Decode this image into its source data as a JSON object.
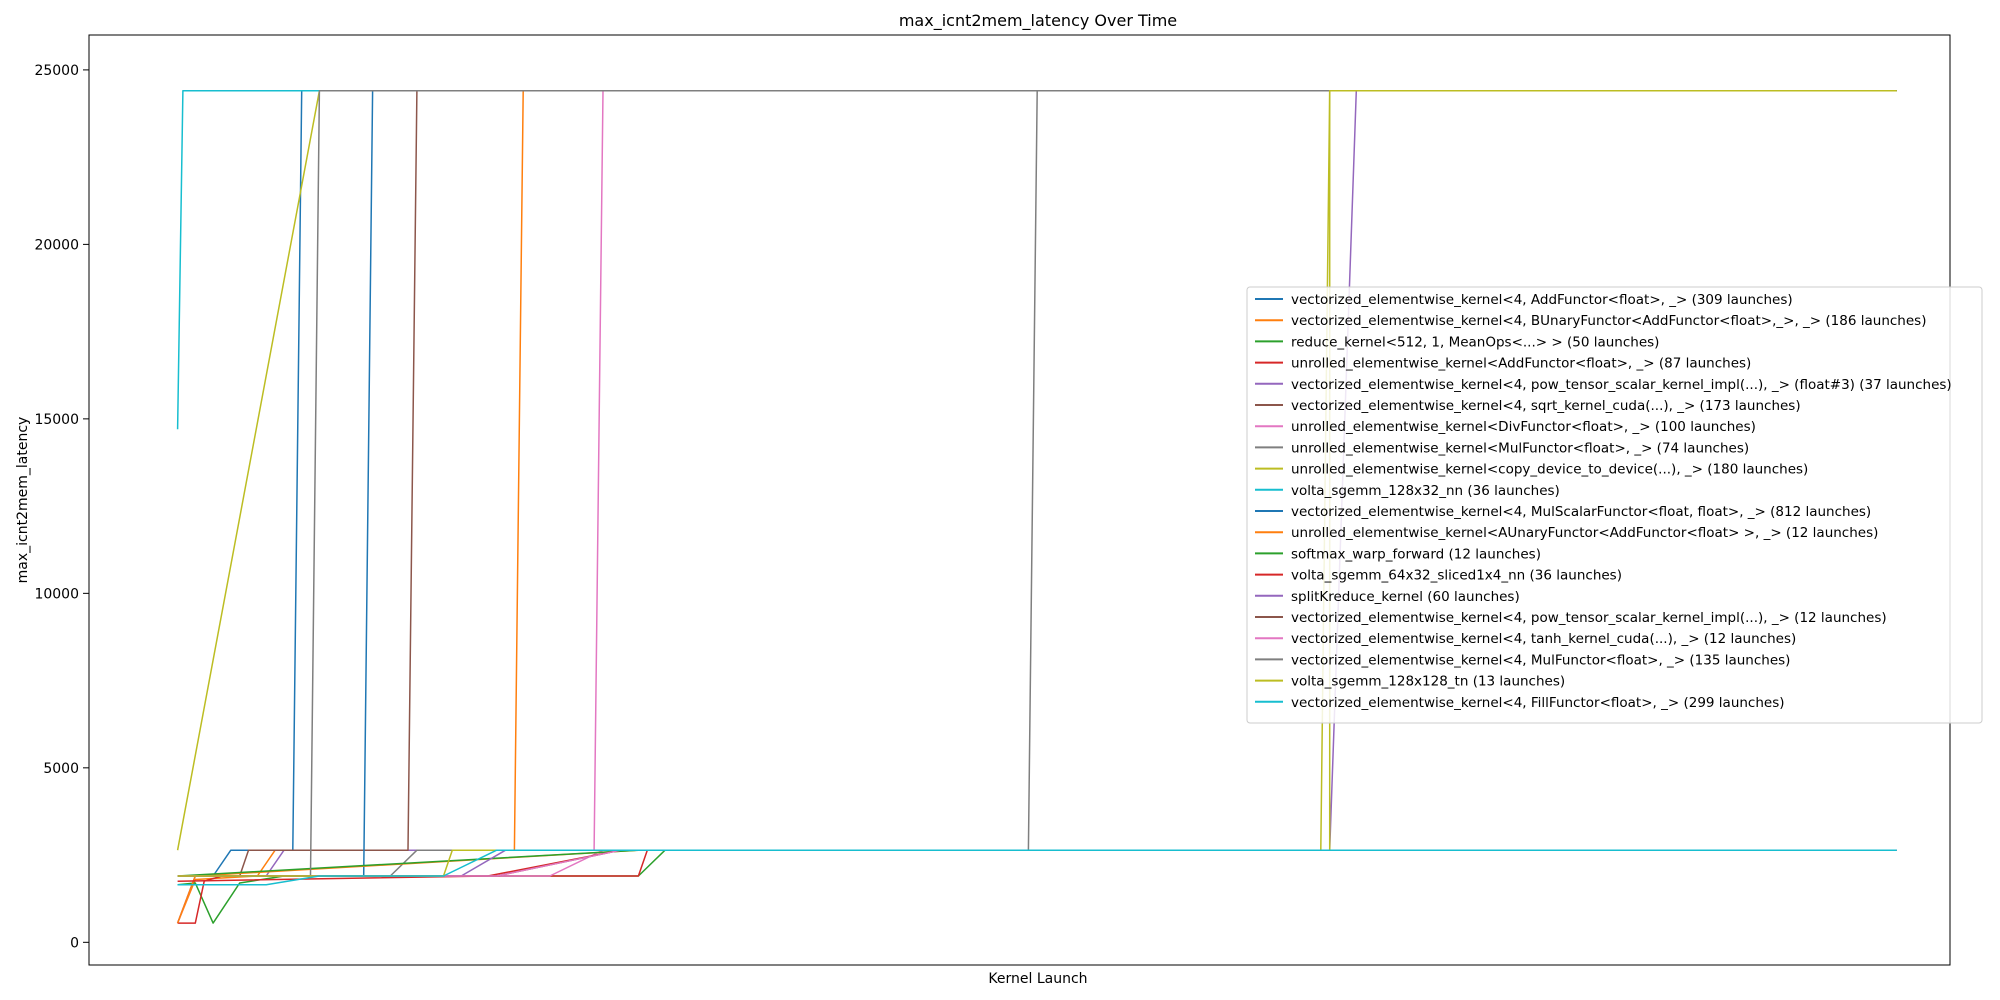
{
  "chart_data": {
    "type": "line",
    "title": "max_icnt2mem_latency Over Time",
    "xlabel": "Kernel Launch",
    "ylabel": "max_icnt2mem_latency",
    "ylim": [
      -650,
      26000
    ],
    "xlim": [
      -10,
      200
    ],
    "x_ticks_shown": false,
    "yticks": [
      0,
      5000,
      10000,
      15000,
      20000,
      25000
    ],
    "ytick_labels": [
      "0",
      "5000",
      "10000",
      "15000",
      "20000",
      "25000"
    ],
    "grid": false,
    "legend_position": "right",
    "series": [
      {
        "name": "vectorized_elementwise_kernel<4, AddFunctor<float>, _> (309 launches)",
        "color": "#1f77b4",
        "points": [
          [
            0,
            550
          ],
          [
            2,
            1900
          ],
          [
            4,
            1900
          ],
          [
            6,
            2640
          ],
          [
            13,
            2640
          ],
          [
            14,
            24400
          ],
          [
            194,
            24400
          ]
        ]
      },
      {
        "name": "vectorized_elementwise_kernel<4, BUnaryFunctor<AddFunctor<float>,_>, _> (186 launches)",
        "color": "#ff7f0e",
        "points": [
          [
            0,
            550
          ],
          [
            2,
            1800
          ],
          [
            9,
            1900
          ],
          [
            11,
            2640
          ],
          [
            38,
            2640
          ],
          [
            39,
            24400
          ],
          [
            194,
            24400
          ]
        ]
      },
      {
        "name": "reduce_kernel<512, 1, MeanOps<...> > (50 launches)",
        "color": "#2ca02c",
        "points": [
          [
            0,
            1650
          ],
          [
            2,
            1700
          ],
          [
            4,
            550
          ],
          [
            7,
            1700
          ],
          [
            12,
            1900
          ],
          [
            52,
            1900
          ],
          [
            55,
            2640
          ],
          [
            194,
            2640
          ]
        ]
      },
      {
        "name": "unrolled_elementwise_kernel<AddFunctor<float>, _> (87 launches)",
        "color": "#d62728",
        "points": [
          [
            0,
            550
          ],
          [
            2,
            550
          ],
          [
            3,
            1750
          ],
          [
            5,
            1900
          ],
          [
            52,
            1900
          ],
          [
            53,
            2640
          ],
          [
            194,
            2640
          ]
        ]
      },
      {
        "name": "vectorized_elementwise_kernel<4, pow_tensor_scalar_kernel_impl(...), _> (float#3) (37 launches)",
        "color": "#9467bd",
        "points": [
          [
            0,
            1900
          ],
          [
            10,
            1900
          ],
          [
            12,
            2640
          ],
          [
            130,
            2640
          ],
          [
            133,
            24400
          ],
          [
            194,
            24400
          ]
        ]
      },
      {
        "name": "vectorized_elementwise_kernel<4, sqrt_kernel_cuda(...), _> (173 launches)",
        "color": "#8c564b",
        "points": [
          [
            0,
            1900
          ],
          [
            7,
            1900
          ],
          [
            8,
            2640
          ],
          [
            26,
            2640
          ],
          [
            27,
            24400
          ],
          [
            194,
            24400
          ]
        ]
      },
      {
        "name": "unrolled_elementwise_kernel<DivFunctor<float>, _> (100 launches)",
        "color": "#e377c2",
        "points": [
          [
            0,
            550
          ],
          [
            2,
            1900
          ],
          [
            42,
            1900
          ],
          [
            48,
            2640
          ],
          [
            47,
            2640
          ],
          [
            48,
            24400
          ],
          [
            194,
            24400
          ]
        ]
      },
      {
        "name": "unrolled_elementwise_kernel<MulFunctor<float>, _> (74 launches)",
        "color": "#7f7f7f",
        "points": [
          [
            0,
            1900
          ],
          [
            24,
            1900
          ],
          [
            27,
            2640
          ],
          [
            96,
            2640
          ],
          [
            97,
            24400
          ],
          [
            194,
            24400
          ]
        ]
      },
      {
        "name": "unrolled_elementwise_kernel<copy_device_to_device(...), _> (180 launches)",
        "color": "#bcbd22",
        "points": [
          [
            0,
            2640
          ],
          [
            16,
            24400
          ],
          [
            130,
            24400
          ],
          [
            130,
            2640
          ],
          [
            194,
            2640
          ]
        ]
      },
      {
        "name": "volta_sgemm_128x32_nn (36 launches)",
        "color": "#17becf",
        "points": [
          [
            0,
            14700
          ],
          [
            0.6,
            24400
          ],
          [
            194,
            24400
          ]
        ]
      },
      {
        "name": "vectorized_elementwise_kernel<4, MulScalarFunctor<float, float>, _> (812 launches)",
        "color": "#1f77b4",
        "points": [
          [
            0,
            1900
          ],
          [
            21,
            1900
          ],
          [
            22,
            24400
          ],
          [
            194,
            24400
          ]
        ]
      },
      {
        "name": "unrolled_elementwise_kernel<AUnaryFunctor<AddFunctor<float> >, _> (12 launches)",
        "color": "#ff7f0e",
        "points": [
          [
            0,
            550
          ],
          [
            2,
            1900
          ],
          [
            52,
            2640
          ],
          [
            194,
            2640
          ]
        ]
      },
      {
        "name": "softmax_warp_forward (12 launches)",
        "color": "#2ca02c",
        "points": [
          [
            0,
            1900
          ],
          [
            52,
            2640
          ],
          [
            194,
            2640
          ]
        ]
      },
      {
        "name": "volta_sgemm_64x32_sliced1x4_nn (36 launches)",
        "color": "#d62728",
        "points": [
          [
            0,
            1750
          ],
          [
            35,
            1900
          ],
          [
            50,
            2640
          ],
          [
            194,
            2640
          ]
        ]
      },
      {
        "name": "splitKreduce_kernel (60 launches)",
        "color": "#9467bd",
        "points": [
          [
            0,
            1900
          ],
          [
            32,
            1900
          ],
          [
            37,
            2640
          ],
          [
            194,
            2640
          ]
        ]
      },
      {
        "name": "vectorized_elementwise_kernel<4, pow_tensor_scalar_kernel_impl(...), _> (12 launches)",
        "color": "#8c564b",
        "points": [
          [
            0,
            1900
          ],
          [
            36,
            1900
          ],
          [
            50,
            2640
          ],
          [
            194,
            2640
          ]
        ]
      },
      {
        "name": "vectorized_elementwise_kernel<4, tanh_kernel_cuda(...), _> (12 launches)",
        "color": "#e377c2",
        "points": [
          [
            0,
            1900
          ],
          [
            36,
            1900
          ],
          [
            50,
            2640
          ],
          [
            194,
            2640
          ]
        ]
      },
      {
        "name": "vectorized_elementwise_kernel<4, MulFunctor<float>, _> (135 launches)",
        "color": "#7f7f7f",
        "points": [
          [
            0,
            1900
          ],
          [
            15,
            1900
          ],
          [
            16,
            24400
          ],
          [
            194,
            24400
          ]
        ]
      },
      {
        "name": "volta_sgemm_128x128_tn (13 launches)",
        "color": "#bcbd22",
        "points": [
          [
            0,
            1900
          ],
          [
            30,
            1900
          ],
          [
            31,
            2640
          ],
          [
            129,
            2640
          ],
          [
            130,
            24400
          ],
          [
            194,
            24400
          ]
        ]
      },
      {
        "name": "vectorized_elementwise_kernel<4, FillFunctor<float>, _> (299 launches)",
        "color": "#17becf",
        "points": [
          [
            0,
            1650
          ],
          [
            10,
            1650
          ],
          [
            16,
            1900
          ],
          [
            30,
            1900
          ],
          [
            36,
            2640
          ],
          [
            194,
            2640
          ]
        ]
      }
    ]
  }
}
